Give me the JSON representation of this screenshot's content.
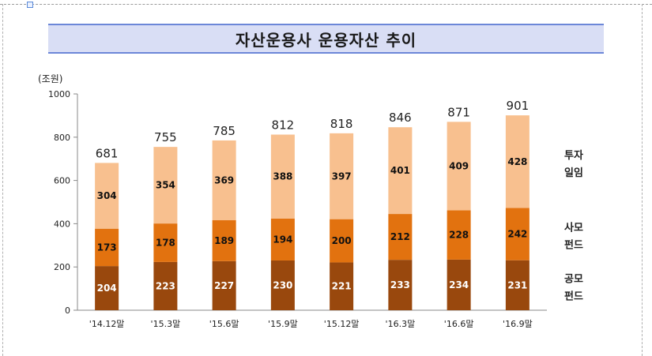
{
  "title": "자산운용사 운용자산 추이",
  "unit": "(조원)",
  "chart_data": {
    "type": "bar",
    "stacked": true,
    "categories": [
      "'14.12말",
      "'15.3말",
      "'15.6말",
      "'15.9말",
      "'15.12말",
      "'16.3말",
      "'16.6말",
      "'16.9말"
    ],
    "series": [
      {
        "name": "공모\n펀드",
        "values": [
          204,
          223,
          227,
          230,
          221,
          233,
          234,
          231
        ],
        "color": "#99480d"
      },
      {
        "name": "사모\n펀드",
        "values": [
          173,
          178,
          189,
          194,
          200,
          212,
          228,
          242
        ],
        "color": "#e2720f"
      },
      {
        "name": "투자\n일임",
        "values": [
          304,
          354,
          369,
          388,
          397,
          401,
          409,
          428
        ],
        "color": "#f8c08f"
      }
    ],
    "totals": [
      681,
      755,
      785,
      812,
      818,
      846,
      871,
      901
    ],
    "ylim": [
      0,
      1000
    ],
    "yticks": [
      0,
      200,
      400,
      600,
      800,
      1000
    ],
    "grid": false,
    "legend": "right"
  }
}
